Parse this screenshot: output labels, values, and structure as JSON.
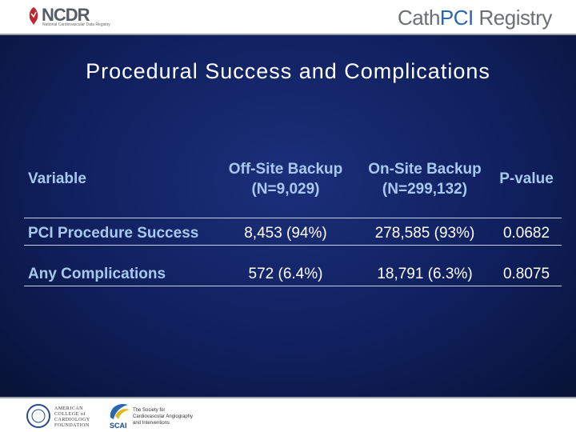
{
  "header": {
    "logo": "NCDR",
    "logo_tagline": "National Cardiovascular Data Registry",
    "registry_prefix": "Cath",
    "registry_highlight": "PCI",
    "registry_suffix": "Registry"
  },
  "title": "Procedural Success and Complications",
  "table": {
    "columns": [
      {
        "name": "Variable"
      },
      {
        "name": "Off-Site Backup",
        "n": "(N=9,029)"
      },
      {
        "name": "On-Site Backup",
        "n": "(N=299,132)"
      },
      {
        "name": "P-value"
      }
    ],
    "rows": [
      [
        "PCI Procedure Success",
        "8,453 (94%)",
        "278,585 (93%)",
        "0.0682"
      ],
      [
        "Any Complications",
        "572 (6.4%)",
        "18,791 (6.3%)",
        "0.8075"
      ]
    ]
  },
  "footer": {
    "acc_lines": [
      "AMERICAN",
      "COLLEGE of",
      "CARDIOLOGY",
      "FOUNDATION"
    ],
    "scai": "SCAI",
    "scai_tagline": "The Society for Cardiovascular Angiography and Interventions"
  }
}
